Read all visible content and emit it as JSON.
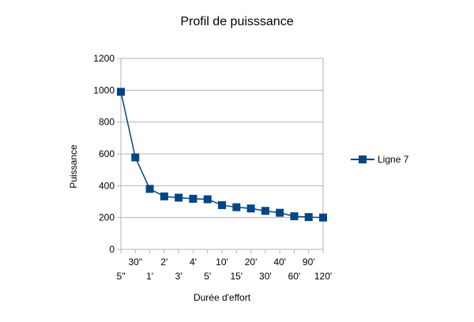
{
  "chart_data": {
    "type": "line",
    "title": "Profil de puisssance",
    "xlabel": "Durée d'effort",
    "ylabel": "Puissance",
    "categories": [
      "5\"",
      "30\"",
      "1'",
      "2'",
      "3'",
      "4'",
      "5'",
      "10'",
      "15'",
      "20'",
      "30'",
      "40'",
      "60'",
      "90'",
      "120'"
    ],
    "series": [
      {
        "name": "Ligne 7",
        "color": "#004586",
        "values": [
          990,
          578,
          380,
          333,
          325,
          318,
          315,
          278,
          265,
          257,
          242,
          230,
          208,
          203,
          200
        ]
      }
    ],
    "ylim": [
      0,
      1200
    ],
    "yticks": [
      "0",
      "200",
      "400",
      "600",
      "800",
      "1000",
      "1200"
    ],
    "grid": true,
    "legend": "right",
    "marker": "square-icon"
  }
}
